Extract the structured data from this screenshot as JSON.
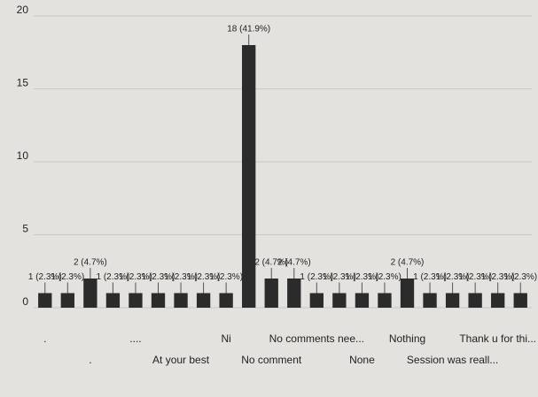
{
  "chart_data": {
    "type": "bar",
    "categories": [
      ".",
      null,
      ".",
      null,
      "....",
      null,
      "At your best",
      null,
      "Ni",
      null,
      "No comment",
      null,
      "No comments nee...",
      null,
      "None",
      null,
      "Nothing",
      null,
      "Session was reall...",
      null,
      "Thank u for thi...",
      null
    ],
    "values": [
      1,
      1,
      2,
      1,
      1,
      1,
      1,
      1,
      1,
      18,
      2,
      2,
      1,
      1,
      1,
      1,
      2,
      1,
      1,
      1,
      1,
      1
    ],
    "value_labels": [
      "1 (2.3%)",
      "1 (2.3%)",
      "2 (4.7%)",
      "1 (2.3%)",
      "1 (2.3%)",
      "1 (2.3%)",
      "1 (2.3%)",
      "1 (2.3%)",
      "1 (2.3%)",
      "18 (41.9%)",
      "2 (4.7%)",
      "2 (4.7%)",
      "1 (2.3%)",
      "1 (2.3%)",
      "1 (2.3%)",
      "1 (2.3%)",
      "2 (4.7%)",
      "1 (2.3%)",
      "1 (2.3%)",
      "1 (2.3%)",
      "1 (2.3%)",
      "1 (2.3%)"
    ],
    "color": "#2b2b2b",
    "ylim": [
      0,
      20
    ],
    "yticks": [
      0,
      5,
      10,
      15,
      20
    ],
    "grid": true
  }
}
